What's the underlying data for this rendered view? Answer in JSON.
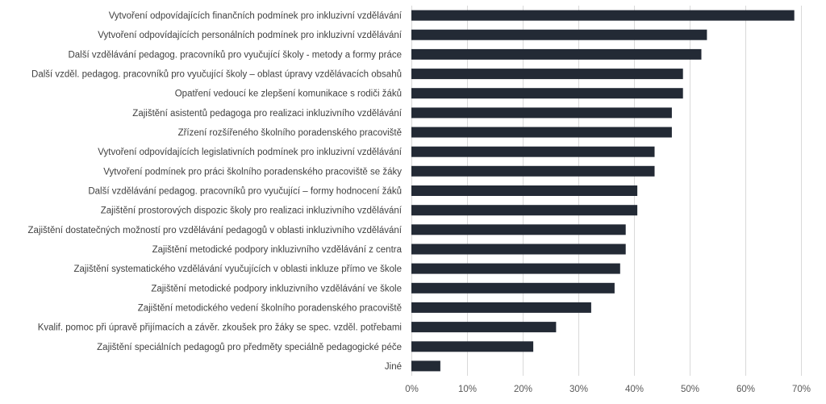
{
  "chart_data": {
    "type": "bar",
    "orientation": "horizontal",
    "categories": [
      "Vytvoření odpovídajících finančních podmínek pro inkluzivní vzdělávání",
      "Vytvoření odpovídajících personálních podmínek pro inkluzivní vzdělávání",
      "Další vzdělávání pedagog. pracovníků pro vyučující školy - metody a formy práce",
      "Další vzděl. pedagog. pracovníků pro vyučující školy – oblast úpravy vzdělávacích obsahů",
      "Opatření vedoucí ke zlepšení komunikace s rodiči žáků",
      "Zajištění asistentů pedagoga pro realizaci inkluzivního vzdělávání",
      "Zřízení rozšířeného školního poradenského pracoviště",
      "Vytvoření odpovídajících legislativních podmínek pro inkluzivní vzdělávání",
      "Vytvoření podmínek pro práci školního poradenského pracoviště se žáky",
      "Další vzdělávání pedagog. pracovníků pro vyučující – formy hodnocení žáků",
      "Zajištění prostorových dispozic školy pro realizaci inkluzivního vzdělávání",
      "Zajištění dostatečných možností pro vzdělávání pedagogů v oblasti inkluzivního vzdělávání",
      "Zajištění metodické podpory inkluzivního vzdělávání z centra",
      "Zajištění systematického vzdělávání vyučujících v oblasti inkluze přímo ve škole",
      "Zajištění metodické podpory inkluzivního vzdělávání ve škole",
      "Zajištění metodického vedení školního poradenského pracoviště",
      "Kvalif. pomoc při úpravě přijímacích a závěr. zkoušek pro žáky se spec. vzděl. potřebami",
      "Zajištění speciálních pedagogů pro předměty speciálně pedagogické péče",
      "Jiné"
    ],
    "values": [
      68.8,
      53.1,
      52.1,
      48.8,
      48.8,
      46.8,
      46.8,
      43.7,
      43.7,
      40.6,
      40.6,
      38.5,
      38.5,
      37.5,
      36.5,
      32.3,
      26.0,
      21.9,
      5.2
    ],
    "xlim": [
      0,
      70
    ],
    "x_ticks": [
      "0%",
      "10%",
      "20%",
      "30%",
      "40%",
      "50%",
      "60%",
      "70%"
    ],
    "grid": true,
    "bar_color": "#232a35",
    "title": "",
    "xlabel": "",
    "ylabel": ""
  }
}
